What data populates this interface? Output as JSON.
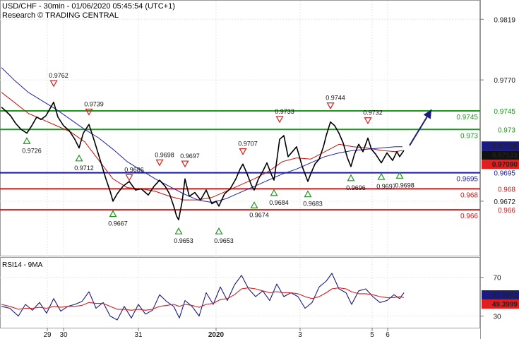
{
  "header": {
    "line1": "USD/CHF - 30min - 01/06/2020 05:45:54 (UTC+1)",
    "line2": "Research © TRADING CENTRAL"
  },
  "chart_data": {
    "type": "line",
    "title": "USD/CHF - 30min - 01/06/2020 05:45:54 (UTC+1)",
    "price_axis": {
      "ticks": [
        "0.9819",
        "0.9770",
        "0.9672"
      ],
      "tick_values": [
        0.9819,
        0.977,
        0.9672
      ],
      "ylim": [
        0.9628,
        0.9834
      ]
    },
    "x_axis": {
      "labels": [
        "29",
        "30",
        "31",
        "2020",
        "3",
        "5",
        "6"
      ],
      "label_positions": [
        67,
        90,
        196,
        306,
        425,
        527,
        549
      ],
      "xlim": [
        0,
        680
      ]
    },
    "levels": [
      {
        "value": 0.9745,
        "label": "0.9745",
        "color": "#1e9620"
      },
      {
        "value": 0.973,
        "label": "0.973",
        "color": "#1e9620"
      },
      {
        "value": 0.9695,
        "label": "0.9695",
        "color": "#1818a8"
      },
      {
        "value": 0.9682,
        "label": "0.968",
        "color": "#d01818"
      },
      {
        "value": 0.9665,
        "label": "0.966",
        "color": "#d01818"
      }
    ],
    "price_tags": [
      {
        "value": 0.97166,
        "label": "0.97166",
        "bg": "#1a1a80",
        "fg": "#ffffff"
      },
      {
        "value": 0.97133,
        "label": "0.97133",
        "bg": "#111111",
        "fg": "#ffffff"
      },
      {
        "value": 0.9709,
        "label": "0.97090",
        "bg": "#e02020",
        "fg": "#ffffff"
      }
    ],
    "swing_highs": [
      {
        "x": 76,
        "value": 0.9762,
        "label": "0.9762"
      },
      {
        "x": 126,
        "value": 0.9739,
        "label": "0.9739"
      },
      {
        "x": 183,
        "value": 0.9686,
        "label": "0.9686"
      },
      {
        "x": 226,
        "value": 0.9698,
        "label": "0.9698"
      },
      {
        "x": 262,
        "value": 0.9697,
        "label": "0.9697"
      },
      {
        "x": 344,
        "value": 0.9707,
        "label": "0.9707"
      },
      {
        "x": 396,
        "value": 0.9733,
        "label": "0.9733"
      },
      {
        "x": 468,
        "value": 0.9744,
        "label": "0.9744"
      },
      {
        "x": 521,
        "value": 0.9732,
        "label": "0.9732"
      }
    ],
    "swing_lows": [
      {
        "x": 38,
        "value": 0.9726,
        "label": "0.9726"
      },
      {
        "x": 112,
        "value": 0.9712,
        "label": "0.9712"
      },
      {
        "x": 160,
        "value": 0.9667,
        "label": "0.9667"
      },
      {
        "x": 253,
        "value": 0.9653,
        "label": "0.9653"
      },
      {
        "x": 310,
        "value": 0.9653,
        "label": "0.9653"
      },
      {
        "x": 360,
        "value": 0.9674,
        "label": "0.9674"
      },
      {
        "x": 388,
        "value": 0.9684,
        "label": "0.9684"
      },
      {
        "x": 436,
        "value": 0.9683,
        "label": "0.9683"
      },
      {
        "x": 497,
        "value": 0.9696,
        "label": "0.9696"
      },
      {
        "x": 540,
        "value": 0.9697,
        "label": "0.9697"
      },
      {
        "x": 566,
        "value": 0.9698,
        "label": "0.9698"
      }
    ],
    "series": [
      {
        "name": "USD/CHF",
        "color": "#000000",
        "x": [
          2,
          8,
          15,
          22,
          30,
          38,
          45,
          52,
          58,
          65,
          72,
          76,
          82,
          90,
          98,
          106,
          112,
          118,
          126,
          134,
          142,
          150,
          156,
          160,
          166,
          174,
          183,
          192,
          200,
          210,
          218,
          226,
          234,
          240,
          246,
          250,
          253,
          258,
          262,
          268,
          276,
          284,
          292,
          300,
          306,
          310,
          318,
          326,
          334,
          340,
          344,
          350,
          356,
          360,
          366,
          372,
          378,
          384,
          388,
          392,
          396,
          402,
          408,
          414,
          420,
          428,
          436,
          440,
          446,
          452,
          458,
          462,
          468,
          474,
          480,
          486,
          492,
          497,
          502,
          508,
          514,
          521,
          526,
          532,
          540,
          548,
          556,
          562,
          566,
          572
        ],
        "values": [
          0.9748,
          0.9745,
          0.9741,
          0.9735,
          0.973,
          0.9727,
          0.9733,
          0.974,
          0.9738,
          0.9741,
          0.9748,
          0.9752,
          0.974,
          0.9733,
          0.9729,
          0.9722,
          0.9715,
          0.9727,
          0.9734,
          0.972,
          0.9705,
          0.969,
          0.968,
          0.9672,
          0.9678,
          0.9684,
          0.9688,
          0.9681,
          0.9682,
          0.9677,
          0.9684,
          0.9689,
          0.9684,
          0.9678,
          0.9668,
          0.966,
          0.9657,
          0.9672,
          0.969,
          0.9676,
          0.9679,
          0.9673,
          0.9681,
          0.967,
          0.9672,
          0.9668,
          0.9678,
          0.9682,
          0.969,
          0.9698,
          0.9702,
          0.9694,
          0.9685,
          0.9681,
          0.969,
          0.9696,
          0.9703,
          0.9694,
          0.9689,
          0.9705,
          0.9722,
          0.9725,
          0.9708,
          0.9712,
          0.9716,
          0.97,
          0.9688,
          0.9694,
          0.9702,
          0.9706,
          0.9716,
          0.9725,
          0.9736,
          0.9733,
          0.9727,
          0.9719,
          0.9707,
          0.97,
          0.971,
          0.9718,
          0.9712,
          0.9723,
          0.9714,
          0.971,
          0.9703,
          0.9711,
          0.9705,
          0.9712,
          0.9708,
          0.9713
        ]
      },
      {
        "name": "MA-fast",
        "color": "#cc1010",
        "x": [
          2,
          20,
          40,
          60,
          80,
          100,
          120,
          140,
          160,
          180,
          200,
          220,
          240,
          260,
          280,
          300,
          320,
          340,
          360,
          380,
          400,
          420,
          440,
          460,
          480,
          500,
          520,
          540,
          560,
          570
        ],
        "values": [
          0.976,
          0.9752,
          0.9743,
          0.9738,
          0.9733,
          0.9728,
          0.972,
          0.9705,
          0.969,
          0.9683,
          0.9682,
          0.968,
          0.9676,
          0.9673,
          0.9673,
          0.9675,
          0.968,
          0.9685,
          0.969,
          0.9696,
          0.9704,
          0.9707,
          0.9706,
          0.9712,
          0.9718,
          0.9716,
          0.9715,
          0.9713,
          0.9712,
          0.9713
        ]
      },
      {
        "name": "MA-slow",
        "color": "#2020b0",
        "x": [
          2,
          20,
          40,
          60,
          80,
          100,
          120,
          140,
          160,
          180,
          200,
          220,
          240,
          260,
          280,
          300,
          320,
          340,
          360,
          380,
          400,
          420,
          440,
          460,
          480,
          500,
          520,
          540,
          560,
          570
        ],
        "values": [
          0.978,
          0.977,
          0.976,
          0.9753,
          0.9746,
          0.9738,
          0.973,
          0.9723,
          0.9714,
          0.9704,
          0.9697,
          0.969,
          0.9684,
          0.9678,
          0.9673,
          0.9671,
          0.9674,
          0.9679,
          0.9684,
          0.9689,
          0.9694,
          0.9698,
          0.9703,
          0.9708,
          0.9711,
          0.9713,
          0.9714,
          0.9715,
          0.9716,
          0.9716
        ]
      }
    ],
    "arrow": {
      "x1": 580,
      "v1": 0.9717,
      "x2": 611,
      "v2": 0.9746,
      "color": "#1a1a80"
    },
    "rsi": {
      "label": "RSI14 - 9MA",
      "ticks": [
        "70",
        "30"
      ],
      "tick_values": [
        70,
        30
      ],
      "ylim": [
        18,
        90
      ],
      "tags": [
        {
          "value": 51.7973,
          "label": "51.7973",
          "bg": "#1a1a80",
          "fg": "#ffffff"
        },
        {
          "value": 49.3999,
          "label": "49.3999",
          "bg": "#e02020",
          "fg": "#ffffff"
        }
      ],
      "series": [
        {
          "name": "RSI14",
          "color": "#1a1a80",
          "x": [
            2,
            14,
            26,
            36,
            46,
            56,
            66,
            76,
            86,
            96,
            106,
            116,
            126,
            136,
            146,
            156,
            166,
            176,
            186,
            196,
            206,
            216,
            226,
            236,
            246,
            254,
            262,
            272,
            282,
            292,
            302,
            312,
            322,
            332,
            342,
            352,
            362,
            372,
            382,
            392,
            402,
            412,
            422,
            432,
            442,
            452,
            462,
            470,
            480,
            490,
            498,
            508,
            518,
            528,
            538,
            548,
            558,
            566,
            572
          ],
          "values": [
            40,
            38,
            30,
            42,
            36,
            44,
            33,
            48,
            35,
            40,
            42,
            45,
            55,
            38,
            44,
            30,
            26,
            40,
            28,
            42,
            32,
            36,
            52,
            45,
            40,
            28,
            46,
            40,
            30,
            54,
            42,
            60,
            46,
            62,
            72,
            58,
            50,
            56,
            46,
            63,
            50,
            54,
            50,
            38,
            44,
            60,
            66,
            74,
            58,
            54,
            42,
            56,
            58,
            50,
            44,
            46,
            52,
            48,
            54
          ]
        },
        {
          "name": "9MA",
          "color": "#d02020",
          "x": [
            2,
            14,
            26,
            36,
            46,
            56,
            66,
            76,
            86,
            96,
            106,
            116,
            126,
            136,
            146,
            156,
            166,
            176,
            186,
            196,
            206,
            216,
            226,
            236,
            246,
            254,
            262,
            272,
            282,
            292,
            302,
            312,
            322,
            332,
            342,
            352,
            362,
            372,
            382,
            392,
            402,
            412,
            422,
            432,
            442,
            452,
            462,
            470,
            480,
            490,
            498,
            508,
            518,
            528,
            538,
            548,
            558,
            566,
            572
          ],
          "values": [
            42,
            40,
            37,
            38,
            38,
            39,
            38,
            40,
            39,
            40,
            40,
            41,
            44,
            43,
            43,
            40,
            37,
            37,
            36,
            37,
            36,
            37,
            40,
            41,
            42,
            40,
            42,
            41,
            39,
            42,
            43,
            47,
            48,
            52,
            58,
            59,
            58,
            56,
            54,
            55,
            54,
            54,
            53,
            50,
            48,
            50,
            54,
            58,
            59,
            58,
            55,
            53,
            53,
            52,
            50,
            49,
            49,
            50,
            49
          ]
        }
      ]
    }
  }
}
